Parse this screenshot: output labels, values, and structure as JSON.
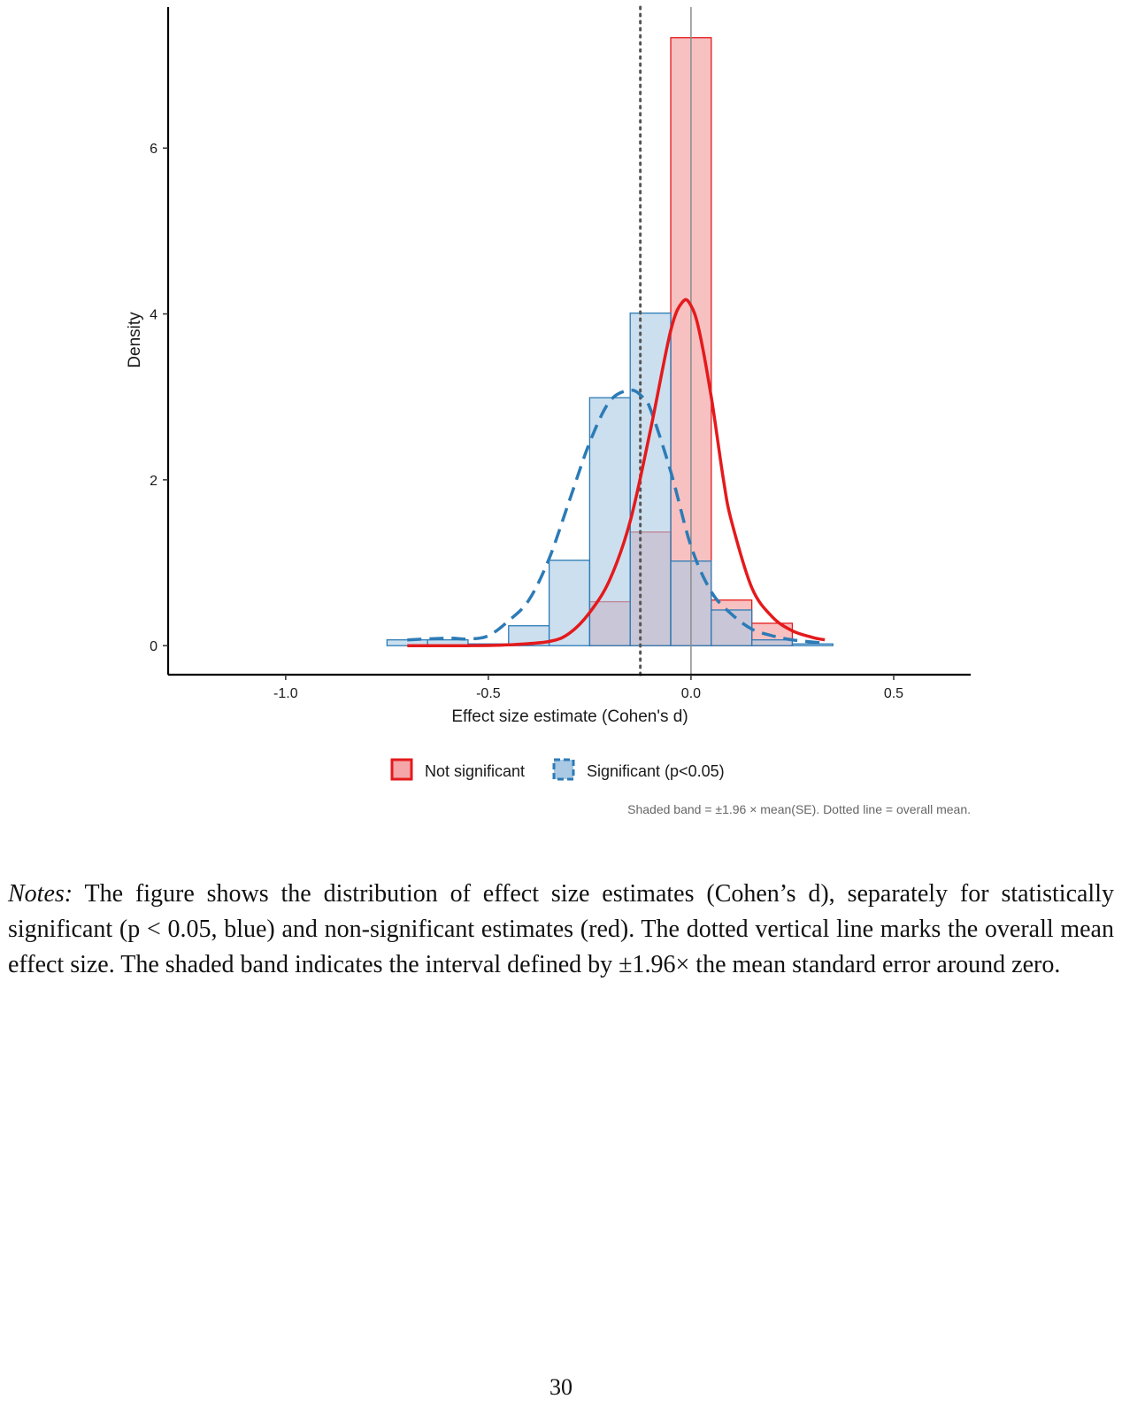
{
  "chart_data": {
    "type": "bar",
    "xlabel": "Effect size estimate (Cohen's d)",
    "ylabel": "Density",
    "xlim": [
      -1.29,
      0.69
    ],
    "ylim": [
      -0.35,
      7.7
    ],
    "x_ticks": [
      -1.0,
      -0.5,
      0.0,
      0.5
    ],
    "x_tick_labels": [
      "-1.0",
      "-0.5",
      "0.0",
      "0.5"
    ],
    "y_ticks": [
      0,
      2,
      4,
      6
    ],
    "y_tick_labels": [
      "0",
      "2",
      "4",
      "6"
    ],
    "bin_width": 0.1,
    "grid": false,
    "legend_position": "bottom",
    "overall_mean": -0.125,
    "zero_line": 0.0,
    "series": [
      {
        "name": "Not significant",
        "kind": "histogram",
        "color": "#e41a1c",
        "fill": "#f4a6a8",
        "line_style": "solid",
        "bins": [
          {
            "x0": -0.25,
            "x1": -0.15,
            "density": 0.53
          },
          {
            "x0": -0.15,
            "x1": -0.05,
            "density": 1.37
          },
          {
            "x0": -0.05,
            "x1": 0.05,
            "density": 7.33
          },
          {
            "x0": 0.05,
            "x1": 0.15,
            "density": 0.55
          },
          {
            "x0": 0.15,
            "x1": 0.25,
            "density": 0.27
          }
        ],
        "density_curve": {
          "x": [
            -0.7,
            -0.55,
            -0.45,
            -0.35,
            -0.3,
            -0.25,
            -0.2,
            -0.15,
            -0.1,
            -0.05,
            -0.02,
            0.0,
            0.02,
            0.05,
            0.08,
            0.1,
            0.15,
            0.2,
            0.25,
            0.3,
            0.33
          ],
          "y": [
            0.0,
            0.0,
            0.01,
            0.05,
            0.15,
            0.4,
            0.8,
            1.5,
            2.6,
            3.8,
            4.15,
            4.1,
            3.8,
            3.0,
            2.0,
            1.5,
            0.7,
            0.35,
            0.18,
            0.1,
            0.07
          ]
        }
      },
      {
        "name": "Significant (p<0.05)",
        "kind": "histogram",
        "color": "#2c7bb6",
        "fill": "#a9c9e4",
        "line_style": "dashed",
        "bins": [
          {
            "x0": -0.75,
            "x1": -0.65,
            "density": 0.07
          },
          {
            "x0": -0.65,
            "x1": -0.55,
            "density": 0.07
          },
          {
            "x0": -0.55,
            "x1": -0.45,
            "density": 0.0
          },
          {
            "x0": -0.45,
            "x1": -0.35,
            "density": 0.24
          },
          {
            "x0": -0.35,
            "x1": -0.25,
            "density": 1.03
          },
          {
            "x0": -0.25,
            "x1": -0.15,
            "density": 2.99
          },
          {
            "x0": -0.15,
            "x1": -0.05,
            "density": 4.01
          },
          {
            "x0": -0.05,
            "x1": 0.05,
            "density": 1.02
          },
          {
            "x0": 0.05,
            "x1": 0.15,
            "density": 0.43
          },
          {
            "x0": 0.15,
            "x1": 0.25,
            "density": 0.07
          },
          {
            "x0": 0.25,
            "x1": 0.35,
            "density": 0.02
          }
        ],
        "density_curve": {
          "x": [
            -0.7,
            -0.6,
            -0.55,
            -0.5,
            -0.45,
            -0.4,
            -0.35,
            -0.3,
            -0.25,
            -0.2,
            -0.15,
            -0.12,
            -0.1,
            -0.05,
            0.0,
            0.05,
            0.1,
            0.15,
            0.2,
            0.25,
            0.33
          ],
          "y": [
            0.07,
            0.09,
            0.08,
            0.12,
            0.3,
            0.55,
            1.05,
            1.75,
            2.45,
            2.95,
            3.08,
            3.0,
            2.85,
            2.1,
            1.2,
            0.65,
            0.38,
            0.2,
            0.12,
            0.07,
            0.03
          ]
        }
      }
    ],
    "caption": "Shaded band = ±1.96 × mean(SE). Dotted line = overall mean."
  },
  "notes": {
    "lead": "Notes:",
    "body": " The figure shows the distribution of effect size estimates (Cohen’s d), separately for statistically significant (p < 0.05, blue) and non-significant estimates (red).  The dotted vertical line marks the overall mean effect size.  The shaded band indicates the interval defined by ±1.96× the mean standard error around zero."
  },
  "page_number": "30"
}
